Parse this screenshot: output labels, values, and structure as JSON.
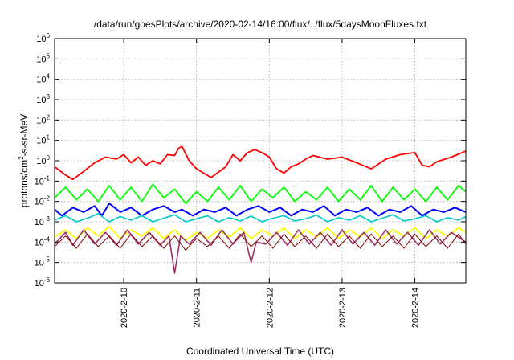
{
  "chart_data": {
    "type": "line",
    "title": "/data/run/goesPlots/archive/2020-02-14/16:00/flux/../flux/5daysMoonFluxes.txt",
    "xlabel": "Coordinated Universal Time (UTC)",
    "ylabel": {
      "base": "protons/cm",
      "sup": "2",
      "rest": "-s-sr-MeV"
    },
    "yscale": "log",
    "ylim": [
      1e-06,
      1000000.0
    ],
    "xlim": [
      9.05,
      14.7
    ],
    "grid": true,
    "legend": "none",
    "y_ticks": [
      {
        "value": -6,
        "base": "10",
        "exp": "-6"
      },
      {
        "value": -5,
        "base": "10",
        "exp": "-5"
      },
      {
        "value": -4,
        "base": "10",
        "exp": "-4"
      },
      {
        "value": -3,
        "base": "10",
        "exp": "-3"
      },
      {
        "value": -2,
        "base": "10",
        "exp": "-2"
      },
      {
        "value": -1,
        "base": "10",
        "exp": "-1"
      },
      {
        "value": 0,
        "base": "10",
        "exp": "0"
      },
      {
        "value": 1,
        "base": "10",
        "exp": "1"
      },
      {
        "value": 2,
        "base": "10",
        "exp": "2"
      },
      {
        "value": 3,
        "base": "10",
        "exp": "3"
      },
      {
        "value": 4,
        "base": "10",
        "exp": "4"
      },
      {
        "value": 5,
        "base": "10",
        "exp": "5"
      },
      {
        "value": 6,
        "base": "10",
        "exp": "6"
      }
    ],
    "x_ticks": [
      {
        "value": 10,
        "label": "2020-2-10"
      },
      {
        "value": 11,
        "label": "2020-2-11"
      },
      {
        "value": 12,
        "label": "2020-2-12"
      },
      {
        "value": 13,
        "label": "2020-2-13"
      },
      {
        "value": 14,
        "label": "2020-2-14"
      }
    ],
    "series": [
      {
        "color": "#ff0000",
        "width": 1.8,
        "x": [
          9.05,
          9.2,
          9.3,
          9.45,
          9.6,
          9.75,
          9.9,
          10.0,
          10.1,
          10.2,
          10.3,
          10.4,
          10.5,
          10.6,
          10.7,
          10.75,
          10.8,
          10.9,
          11.0,
          11.2,
          11.4,
          11.5,
          11.6,
          11.7,
          11.8,
          11.9,
          12.0,
          12.1,
          12.2,
          12.3,
          12.4,
          12.5,
          12.6,
          12.8,
          13.0,
          13.2,
          13.4,
          13.6,
          13.8,
          14.0,
          14.1,
          14.2,
          14.3,
          14.5,
          14.7
        ],
        "y": [
          0.5,
          0.2,
          0.12,
          0.3,
          0.8,
          1.5,
          1.2,
          2.0,
          0.8,
          1.5,
          0.6,
          1.0,
          0.7,
          2.0,
          1.8,
          4.0,
          5.0,
          1.0,
          0.4,
          0.15,
          0.5,
          2.0,
          1.0,
          2.5,
          3.5,
          2.5,
          1.5,
          0.4,
          0.25,
          0.5,
          0.7,
          1.2,
          1.8,
          1.2,
          1.5,
          0.8,
          0.4,
          1.2,
          2.0,
          2.5,
          0.6,
          0.5,
          0.9,
          1.5,
          3.0
        ]
      },
      {
        "color": "#00ff00",
        "width": 1.8,
        "x": [
          9.05,
          9.2,
          9.35,
          9.5,
          9.65,
          9.8,
          9.95,
          10.1,
          10.25,
          10.4,
          10.55,
          10.7,
          10.85,
          11.0,
          11.15,
          11.3,
          11.45,
          11.6,
          11.75,
          11.9,
          12.05,
          12.2,
          12.35,
          12.5,
          12.65,
          12.8,
          12.95,
          13.1,
          13.25,
          13.4,
          13.55,
          13.7,
          13.85,
          14.0,
          14.15,
          14.3,
          14.45,
          14.6,
          14.7
        ],
        "y": [
          0.015,
          0.05,
          0.012,
          0.04,
          0.01,
          0.06,
          0.012,
          0.05,
          0.01,
          0.07,
          0.015,
          0.04,
          0.008,
          0.03,
          0.01,
          0.05,
          0.012,
          0.06,
          0.01,
          0.04,
          0.015,
          0.05,
          0.01,
          0.03,
          0.012,
          0.05,
          0.01,
          0.04,
          0.012,
          0.06,
          0.01,
          0.05,
          0.012,
          0.04,
          0.01,
          0.05,
          0.012,
          0.06,
          0.03
        ]
      },
      {
        "color": "#0000ff",
        "width": 2.0,
        "x": [
          9.05,
          9.15,
          9.3,
          9.45,
          9.6,
          9.7,
          9.8,
          9.95,
          10.1,
          10.25,
          10.4,
          10.55,
          10.7,
          10.8,
          10.95,
          11.1,
          11.25,
          11.4,
          11.55,
          11.7,
          11.85,
          12.0,
          12.15,
          12.3,
          12.45,
          12.6,
          12.75,
          12.9,
          13.05,
          13.2,
          13.35,
          13.5,
          13.65,
          13.8,
          13.95,
          14.1,
          14.25,
          14.4,
          14.55,
          14.7
        ],
        "y": [
          0.004,
          0.002,
          0.005,
          0.003,
          0.006,
          0.002,
          0.008,
          0.003,
          0.005,
          0.002,
          0.004,
          0.006,
          0.003,
          0.004,
          0.002,
          0.004,
          0.003,
          0.005,
          0.002,
          0.004,
          0.006,
          0.003,
          0.005,
          0.002,
          0.004,
          0.003,
          0.006,
          0.002,
          0.004,
          0.003,
          0.005,
          0.002,
          0.004,
          0.003,
          0.006,
          0.002,
          0.004,
          0.003,
          0.005,
          0.003
        ]
      },
      {
        "color": "#00c8c8",
        "width": 1.6,
        "x": [
          9.05,
          9.2,
          9.35,
          9.5,
          9.65,
          9.8,
          9.95,
          10.1,
          10.25,
          10.4,
          10.55,
          10.7,
          10.85,
          11.0,
          11.15,
          11.3,
          11.45,
          11.6,
          11.75,
          11.9,
          12.05,
          12.2,
          12.35,
          12.5,
          12.65,
          12.8,
          12.95,
          13.1,
          13.25,
          13.4,
          13.55,
          13.7,
          13.85,
          14.0,
          14.15,
          14.3,
          14.45,
          14.6,
          14.7
        ],
        "y": [
          0.0012,
          0.002,
          0.001,
          0.0015,
          0.0025,
          0.001,
          0.0018,
          0.0012,
          0.002,
          0.001,
          0.0015,
          0.0022,
          0.001,
          0.0014,
          0.002,
          0.001,
          0.0016,
          0.0011,
          0.0019,
          0.001,
          0.0015,
          0.002,
          0.0011,
          0.0014,
          0.0021,
          0.001,
          0.0016,
          0.0012,
          0.002,
          0.001,
          0.0015,
          0.0022,
          0.0011,
          0.0014,
          0.002,
          0.001,
          0.0016,
          0.0012,
          0.0018
        ]
      },
      {
        "color": "#ffff00",
        "width": 1.8,
        "x": [
          9.05,
          9.2,
          9.35,
          9.5,
          9.65,
          9.8,
          9.95,
          10.1,
          10.25,
          10.4,
          10.55,
          10.7,
          10.85,
          11.0,
          11.15,
          11.3,
          11.45,
          11.6,
          11.75,
          11.9,
          12.05,
          12.2,
          12.35,
          12.5,
          12.65,
          12.8,
          12.95,
          13.1,
          13.25,
          13.4,
          13.55,
          13.7,
          13.85,
          14.0,
          14.15,
          14.3,
          14.45,
          14.6,
          14.7
        ],
        "y": [
          0.00018,
          0.0004,
          0.00015,
          0.0005,
          0.0002,
          0.0006,
          0.00015,
          0.0004,
          0.0002,
          0.0005,
          0.00015,
          0.0004,
          0.00012,
          0.0003,
          0.00015,
          0.0004,
          0.00018,
          0.0005,
          0.00015,
          0.0004,
          0.0002,
          0.0005,
          0.00015,
          0.0004,
          0.00018,
          0.0005,
          0.00015,
          0.0004,
          0.00018,
          0.0005,
          0.00015,
          0.0004,
          0.0002,
          0.0005,
          0.00015,
          0.0004,
          0.0002,
          0.0005,
          0.0003
        ]
      },
      {
        "color": "#993366",
        "width": 1.6,
        "x": [
          9.05,
          9.2,
          9.3,
          9.45,
          9.6,
          9.75,
          9.9,
          10.05,
          10.2,
          10.35,
          10.5,
          10.62,
          10.7,
          10.78,
          10.9,
          11.05,
          11.2,
          11.35,
          11.5,
          11.65,
          11.75,
          11.82,
          11.95,
          12.1,
          12.25,
          12.4,
          12.55,
          12.7,
          12.85,
          13.0,
          13.15,
          13.3,
          13.45,
          13.6,
          13.75,
          13.9,
          14.05,
          14.2,
          14.35,
          14.5,
          14.7
        ],
        "y": [
          8e-05,
          0.0003,
          7e-05,
          0.0004,
          8e-05,
          0.0003,
          7e-05,
          0.0004,
          8e-05,
          0.0003,
          7e-05,
          0.0002,
          3e-06,
          0.0002,
          8e-05,
          0.0003,
          7e-05,
          0.0004,
          8e-05,
          0.0003,
          1e-05,
          0.0001,
          8e-05,
          0.0003,
          7e-05,
          0.0004,
          8e-05,
          0.0003,
          7e-05,
          0.0004,
          8e-05,
          0.0003,
          7e-05,
          0.0004,
          8e-05,
          0.0003,
          7e-05,
          0.0004,
          8e-05,
          0.0003,
          0.0001
        ]
      },
      {
        "color": "#800000",
        "width": 1.0,
        "x": [
          9.05,
          9.2,
          9.35,
          9.5,
          9.65,
          9.8,
          9.95,
          10.1,
          10.25,
          10.4,
          10.55,
          10.7,
          10.85,
          11.0,
          11.15,
          11.3,
          11.45,
          11.6,
          11.75,
          11.9,
          12.05,
          12.2,
          12.35,
          12.5,
          12.65,
          12.8,
          12.95,
          13.1,
          13.25,
          13.4,
          13.55,
          13.7,
          13.85,
          14.0,
          14.15,
          14.3,
          14.45,
          14.6,
          14.7
        ],
        "y": [
          6e-05,
          0.0002,
          5e-05,
          0.00025,
          6e-05,
          0.0002,
          5e-05,
          0.00025,
          6e-05,
          0.0002,
          5e-05,
          0.0002,
          4e-05,
          0.00015,
          6e-05,
          0.0002,
          5e-05,
          0.00025,
          6e-05,
          0.0002,
          5e-05,
          0.00025,
          6e-05,
          0.0002,
          5e-05,
          0.00025,
          6e-05,
          0.0002,
          5e-05,
          0.00025,
          6e-05,
          0.0002,
          5e-05,
          0.00025,
          6e-05,
          0.0002,
          5e-05,
          0.00025,
          8e-05
        ]
      }
    ]
  }
}
